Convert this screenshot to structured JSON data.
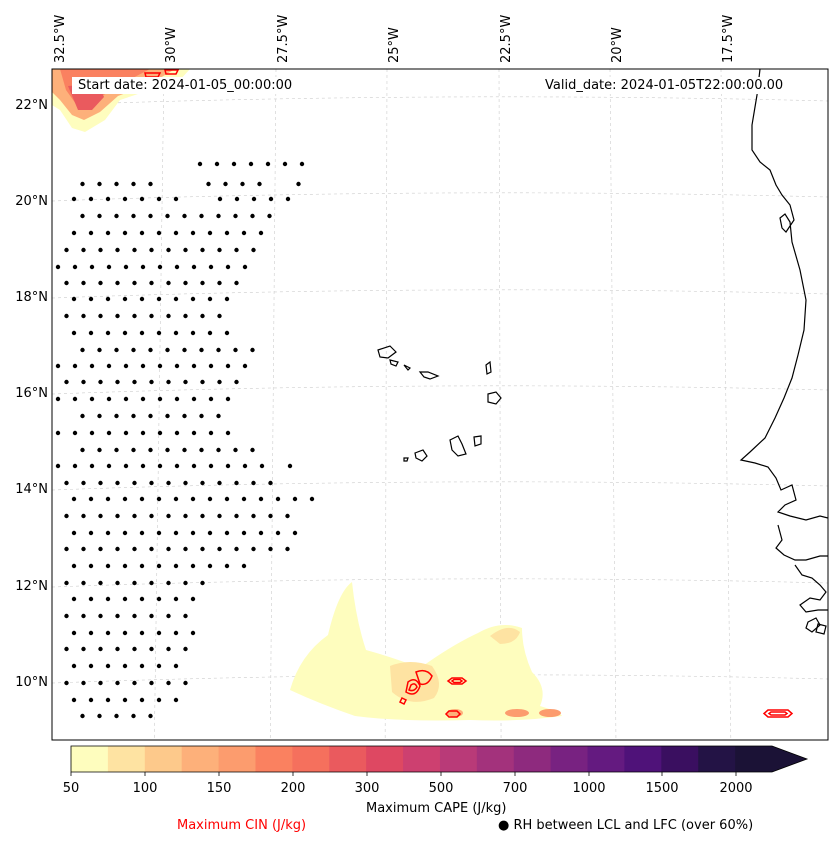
{
  "map": {
    "lon_labels": [
      "32.5°W",
      "30°W",
      "27.5°W",
      "25°W",
      "22.5°W",
      "20°W",
      "17.5°W"
    ],
    "lat_labels": [
      "22°N",
      "20°N",
      "18°N",
      "16°N",
      "14°N",
      "12°N",
      "10°N"
    ],
    "start_date": "Start date: 2024-01-05_00:00:00",
    "valid_date": "Valid_date: 2024-01-05T22:00:00.00",
    "colors": {
      "coast": "#000000",
      "grid": "#cccccc",
      "cin": "#ff0000",
      "stipple": "#000000"
    }
  },
  "colorbar": {
    "label": "Maximum CAPE (J/kg)",
    "ticks": [
      "50",
      "100",
      "150",
      "200",
      "300",
      "500",
      "700",
      "1000",
      "1500",
      "2000"
    ],
    "levels": [
      50,
      75,
      100,
      125,
      150,
      175,
      200,
      250,
      300,
      400,
      500,
      600,
      700,
      850,
      1000,
      1250,
      1500,
      1750,
      2000
    ],
    "colors": [
      "#fefdbe",
      "#fee3a2",
      "#fdc98b",
      "#fdb07a",
      "#fc9c6e",
      "#fa8160",
      "#f5705d",
      "#ea5a5e",
      "#de4862",
      "#cd4070",
      "#b93a78",
      "#a3327c",
      "#8e2a7e",
      "#782281",
      "#641a80",
      "#4f1279",
      "#3a0f60",
      "#231345",
      "#1b1236"
    ],
    "extend_color": "#1b1236"
  },
  "legend": {
    "cin_label": "Maximum CIN (J/kg)",
    "cin_color": "#ff0000",
    "rh_marker": "●",
    "rh_label": "RH between LCL and LFC (over 60%)"
  }
}
